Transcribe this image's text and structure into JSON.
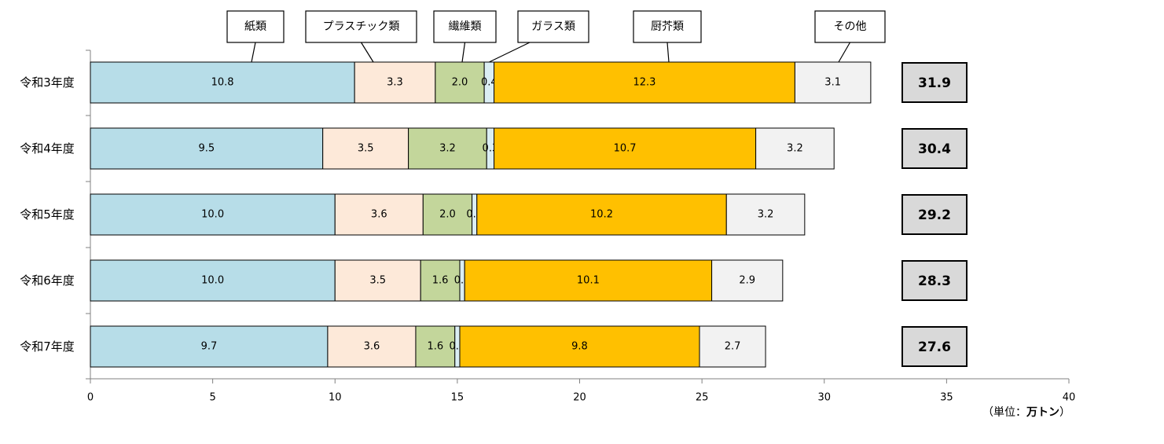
{
  "chart_data": {
    "type": "bar",
    "orientation": "horizontal",
    "stacked": true,
    "categories": [
      "令和3年度",
      "令和4年度",
      "令和5年度",
      "令和6年度",
      "令和7年度"
    ],
    "series": [
      {
        "name": "紙類",
        "color": "#b7dde8",
        "values": [
          10.8,
          9.5,
          10.0,
          10.0,
          9.7
        ]
      },
      {
        "name": "プラスチック類",
        "color": "#fde9d9",
        "values": [
          3.3,
          3.5,
          3.6,
          3.5,
          3.6
        ]
      },
      {
        "name": "繊維類",
        "color": "#c3d69b",
        "values": [
          2.0,
          3.2,
          2.0,
          1.6,
          1.6
        ]
      },
      {
        "name": "ガラス類",
        "color": "#dbeef4",
        "values": [
          0.4,
          0.3,
          0.2,
          0.2,
          0.2
        ]
      },
      {
        "name": "厨芥類",
        "color": "#ffc000",
        "values": [
          12.3,
          10.7,
          10.2,
          10.1,
          9.8
        ]
      },
      {
        "name": "その他",
        "color": "#f2f2f2",
        "values": [
          3.1,
          3.2,
          3.2,
          2.9,
          2.7
        ]
      }
    ],
    "totals": [
      31.9,
      30.4,
      29.2,
      28.3,
      27.6
    ],
    "xlim": [
      0,
      40
    ],
    "xticks": [
      0,
      5,
      10,
      15,
      20,
      25,
      30,
      35,
      40
    ],
    "grid": false,
    "legend_placement": "top callouts",
    "unit_prefix": "（単位：",
    "unit_bold": "万トン",
    "unit_suffix": "）"
  }
}
